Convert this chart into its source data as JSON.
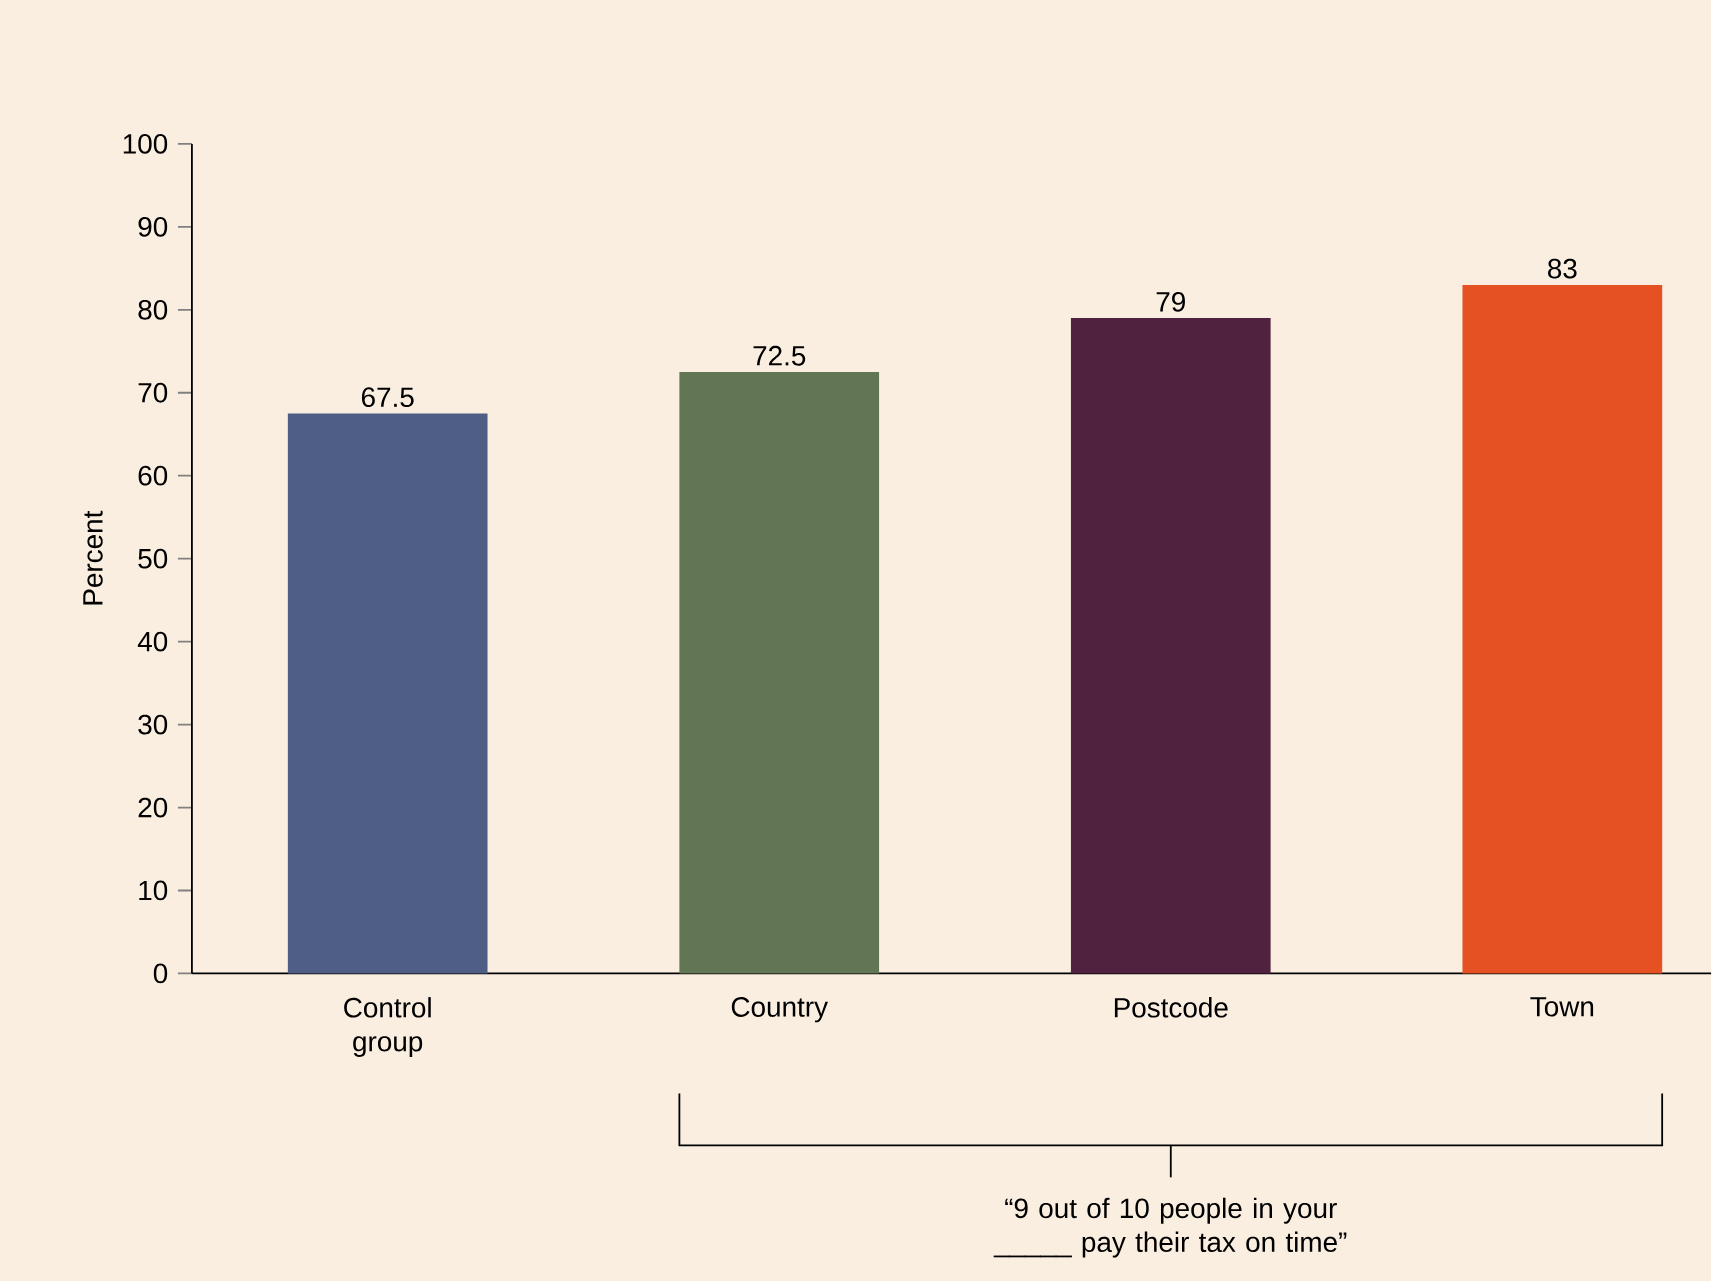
{
  "chart_data": {
    "type": "bar",
    "ylabel": "Percent",
    "categories": [
      "Control group",
      "Country",
      "Postcode",
      "Town"
    ],
    "values": [
      67.5,
      72.5,
      79,
      83
    ],
    "colors": [
      "#4e5e84",
      "#627656",
      "#512140",
      "#e65124"
    ],
    "ylim": [
      0,
      100
    ],
    "yticks": [
      0,
      10,
      20,
      30,
      40,
      50,
      60,
      70,
      80,
      90,
      100
    ],
    "data_labels": true,
    "grid": false,
    "annotations": [
      "“9 out of 10 people in your _____ pay their tax on time”"
    ]
  }
}
